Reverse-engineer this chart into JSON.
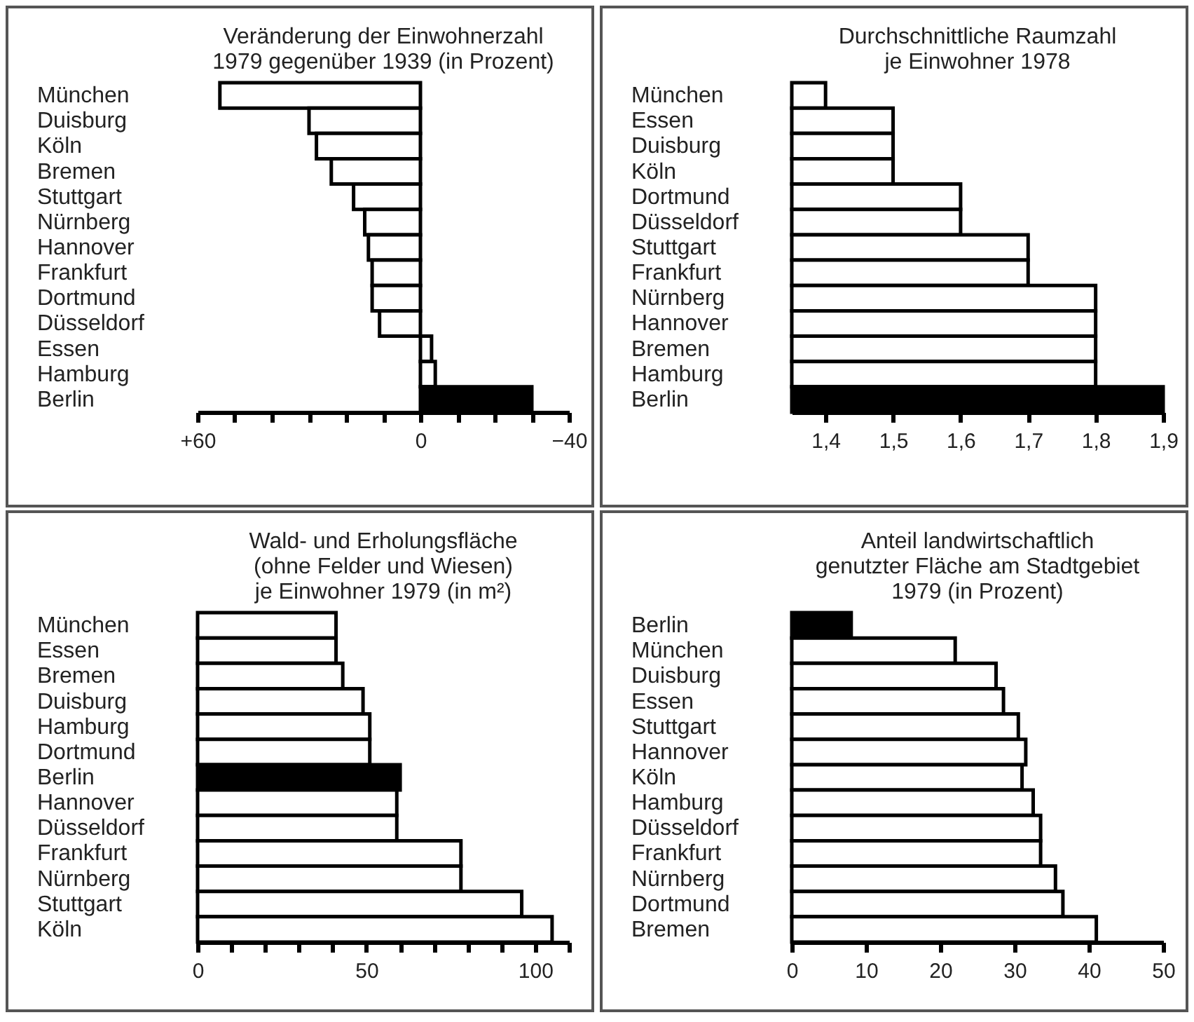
{
  "chart_data": [
    {
      "type": "bar",
      "orientation": "horizontal",
      "title": "Veränderung der Einwohnerzahl\n1979 gegenüber 1939 (in Prozent)",
      "categories": [
        "München",
        "Duisburg",
        "Köln",
        "Bremen",
        "Stuttgart",
        "Nürnberg",
        "Hannover",
        "Frankfurt",
        "Dortmund",
        "Düsseldorf",
        "Essen",
        "Hamburg",
        "Berlin"
      ],
      "values": [
        54,
        30,
        28,
        24,
        18,
        15,
        14,
        13,
        13,
        11,
        -3,
        -4,
        -30
      ],
      "colors": [
        "#ffffff",
        "#ffffff",
        "#ffffff",
        "#ffffff",
        "#ffffff",
        "#ffffff",
        "#ffffff",
        "#ffffff",
        "#ffffff",
        "#ffffff",
        "#ffffff",
        "#ffffff",
        "#000000"
      ],
      "xlim": [
        60,
        -40
      ],
      "xticks": [
        {
          "value": 60,
          "label": "+60"
        },
        {
          "value": 50,
          "label": null
        },
        {
          "value": 40,
          "label": null
        },
        {
          "value": 30,
          "label": null
        },
        {
          "value": 20,
          "label": null
        },
        {
          "value": 10,
          "label": null
        },
        0,
        {
          "value": -10,
          "label": null
        },
        {
          "value": -20,
          "label": null
        },
        {
          "value": -30,
          "label": null
        },
        {
          "value": -40,
          "label": "−40"
        }
      ]
    },
    {
      "type": "bar",
      "orientation": "horizontal",
      "title": "Durchschnittliche Raumzahl\nje Einwohner 1978",
      "categories": [
        "München",
        "Essen",
        "Duisburg",
        "Köln",
        "Dortmund",
        "Düsseldorf",
        "Stuttgart",
        "Frankfurt",
        "Nürnberg",
        "Hannover",
        "Bremen",
        "Hamburg",
        "Berlin"
      ],
      "values": [
        1.4,
        1.5,
        1.5,
        1.5,
        1.6,
        1.6,
        1.7,
        1.7,
        1.8,
        1.8,
        1.8,
        1.8,
        1.9
      ],
      "colors": [
        "#ffffff",
        "#ffffff",
        "#ffffff",
        "#ffffff",
        "#ffffff",
        "#ffffff",
        "#ffffff",
        "#ffffff",
        "#ffffff",
        "#ffffff",
        "#ffffff",
        "#ffffff",
        "#000000"
      ],
      "xlim": [
        1.35,
        1.9
      ],
      "xticks": [
        {
          "value": 1.4,
          "label": "1,4"
        },
        {
          "value": 1.5,
          "label": "1,5"
        },
        {
          "value": 1.6,
          "label": "1,6"
        },
        {
          "value": 1.7,
          "label": "1,7"
        },
        {
          "value": 1.8,
          "label": "1,8"
        },
        {
          "value": 1.9,
          "label": "1,9"
        }
      ]
    },
    {
      "type": "bar",
      "orientation": "horizontal",
      "title": "Wald- und Erholungsfläche\n(ohne Felder und Wiesen)\nje Einwohner 1979 (in m²)",
      "categories": [
        "München",
        "Essen",
        "Bremen",
        "Duisburg",
        "Hamburg",
        "Dortmund",
        "Berlin",
        "Hannover",
        "Düsseldorf",
        "Frankfurt",
        "Nürnberg",
        "Stuttgart",
        "Köln"
      ],
      "values": [
        41,
        41,
        43,
        49,
        51,
        51,
        60,
        59,
        59,
        78,
        78,
        96,
        105
      ],
      "colors": [
        "#ffffff",
        "#ffffff",
        "#ffffff",
        "#ffffff",
        "#ffffff",
        "#ffffff",
        "#000000",
        "#ffffff",
        "#ffffff",
        "#ffffff",
        "#ffffff",
        "#ffffff",
        "#ffffff"
      ],
      "xlim": [
        0,
        110
      ],
      "xticks": [
        0,
        {
          "value": 10,
          "label": null
        },
        {
          "value": 20,
          "label": null
        },
        {
          "value": 30,
          "label": null
        },
        {
          "value": 40,
          "label": null
        },
        50,
        {
          "value": 60,
          "label": null
        },
        {
          "value": 70,
          "label": null
        },
        {
          "value": 80,
          "label": null
        },
        {
          "value": 90,
          "label": null
        },
        100,
        {
          "value": 110,
          "label": null
        }
      ]
    },
    {
      "type": "bar",
      "orientation": "horizontal",
      "title": "Anteil landwirtschaftlich\ngenutzter Fläche am Stadtgebiet\n1979 (in Prozent)",
      "categories": [
        "Berlin",
        "München",
        "Duisburg",
        "Essen",
        "Stuttgart",
        "Hannover",
        "Köln",
        "Hamburg",
        "Düsseldorf",
        "Frankfurt",
        "Nürnberg",
        "Dortmund",
        "Bremen"
      ],
      "values": [
        8,
        22,
        27.5,
        28.5,
        30.5,
        31.5,
        31,
        32.5,
        33.5,
        33.5,
        35.5,
        36.5,
        41
      ],
      "colors": [
        "#000000",
        "#ffffff",
        "#ffffff",
        "#ffffff",
        "#ffffff",
        "#ffffff",
        "#ffffff",
        "#ffffff",
        "#ffffff",
        "#ffffff",
        "#ffffff",
        "#ffffff",
        "#ffffff"
      ],
      "xlim": [
        0,
        50
      ],
      "xticks": [
        0,
        10,
        20,
        30,
        40,
        50
      ]
    }
  ]
}
